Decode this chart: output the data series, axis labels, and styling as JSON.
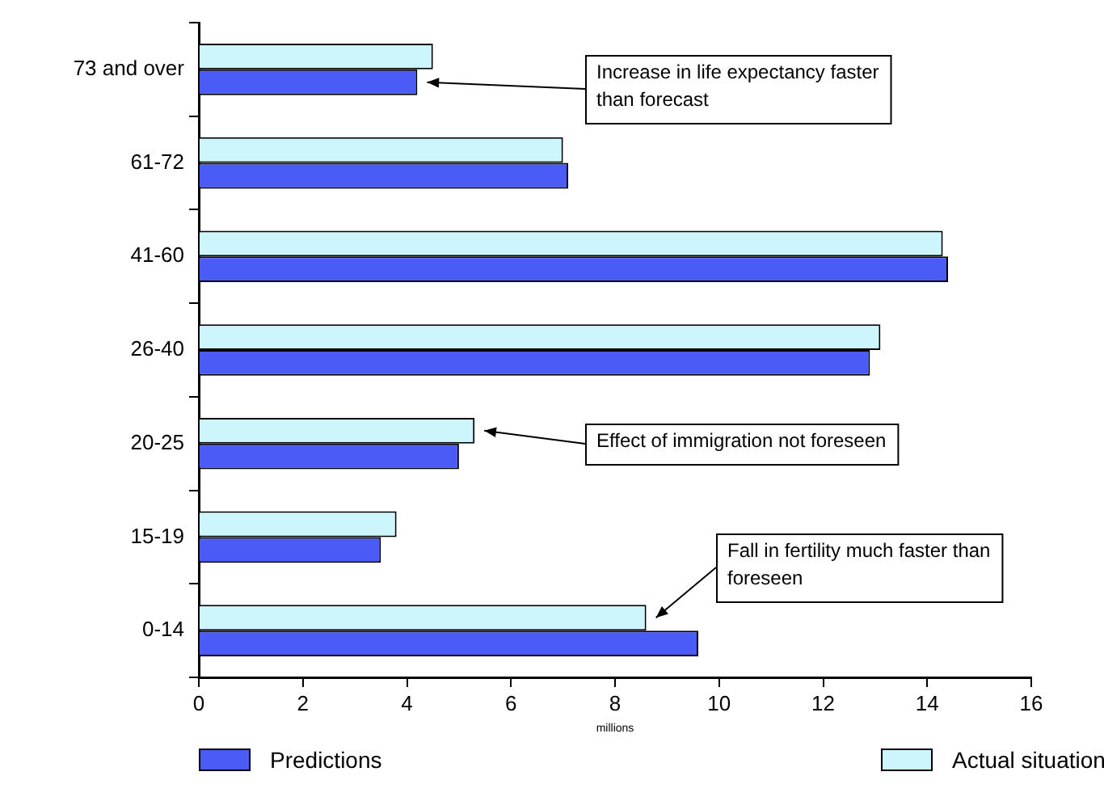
{
  "chart_data": {
    "type": "bar",
    "orientation": "horizontal",
    "xlabel": "millions",
    "categories": [
      "73 and over",
      "61-72",
      "41-60",
      "26-40",
      "20-25",
      "15-19",
      "0-14"
    ],
    "series": [
      {
        "name": "Actual situation",
        "color": "#ccf6fc",
        "values": [
          4.5,
          7.0,
          14.3,
          13.1,
          5.3,
          3.8,
          8.6
        ]
      },
      {
        "name": "Predictions",
        "color": "#4a5cf5",
        "values": [
          4.2,
          7.1,
          14.4,
          12.9,
          5.0,
          3.5,
          9.6
        ]
      }
    ],
    "xlim": [
      0,
      16
    ],
    "xticks": [
      0,
      2,
      4,
      6,
      8,
      10,
      12,
      14,
      16
    ],
    "grid": false,
    "legend": "bottom",
    "annotations": [
      "Increase in life expectancy faster than forecast",
      "Effect of immigration not foreseen",
      "Fall in fertility much faster than foreseen"
    ]
  }
}
